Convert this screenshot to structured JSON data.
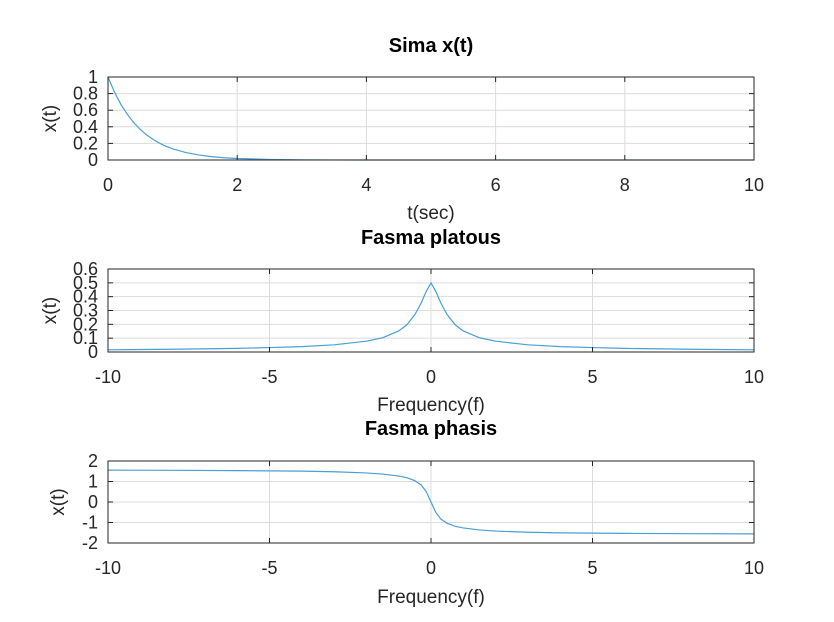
{
  "chart_data": [
    {
      "type": "line",
      "title": "Sima x(t)",
      "xlabel": "t(sec)",
      "ylabel": "x(t)",
      "xlim": [
        0,
        10
      ],
      "ylim": [
        0,
        1
      ],
      "xticks": [
        0,
        2,
        4,
        6,
        8,
        10
      ],
      "xtick_labels": [
        "0",
        "2",
        "4",
        "6",
        "8",
        "10"
      ],
      "yticks": [
        0,
        0.2,
        0.4,
        0.6,
        0.8,
        1
      ],
      "ytick_labels": [
        "0",
        "0.2",
        "0.4",
        "0.6",
        "0.8",
        "1"
      ],
      "grid": true,
      "series": [
        {
          "color": "#4a9fd5",
          "x": [
            0,
            0.1,
            0.2,
            0.3,
            0.4,
            0.5,
            0.6,
            0.7,
            0.8,
            0.9,
            1.0,
            1.2,
            1.4,
            1.6,
            1.8,
            2.0,
            2.5,
            3.0,
            3.5,
            4.0,
            5.0,
            6.0,
            7.0,
            8.0,
            9.0,
            10.0
          ],
          "y": [
            1.0,
            0.819,
            0.67,
            0.549,
            0.449,
            0.368,
            0.301,
            0.247,
            0.202,
            0.165,
            0.135,
            0.091,
            0.061,
            0.041,
            0.027,
            0.018,
            0.007,
            0.002,
            0.001,
            0.0003,
            0.0,
            0.0,
            0.0,
            0.0,
            0.0,
            0.0
          ]
        }
      ]
    },
    {
      "type": "line",
      "title": "Fasma platous",
      "xlabel": "Frequency(f)",
      "ylabel": "x(t)",
      "xlim": [
        -10,
        10
      ],
      "ylim": [
        0,
        0.6
      ],
      "xticks": [
        -10,
        -5,
        0,
        5,
        10
      ],
      "xtick_labels": [
        "-10",
        "-5",
        "0",
        "5",
        "10"
      ],
      "yticks": [
        0,
        0.1,
        0.2,
        0.3,
        0.4,
        0.5,
        0.6
      ],
      "ytick_labels": [
        "0",
        "0.1",
        "0.2",
        "0.3",
        "0.4",
        "0.5",
        "0.6"
      ],
      "grid": true,
      "series": [
        {
          "color": "#4a9fd5",
          "x": [
            -10,
            -8,
            -6,
            -5,
            -4,
            -3,
            -2,
            -1.5,
            -1,
            -0.75,
            -0.5,
            -0.3,
            -0.15,
            0,
            0.15,
            0.3,
            0.5,
            0.75,
            1,
            1.5,
            2,
            3,
            4,
            5,
            6,
            8,
            10
          ],
          "y": [
            0.016,
            0.02,
            0.026,
            0.032,
            0.039,
            0.052,
            0.078,
            0.103,
            0.152,
            0.196,
            0.27,
            0.356,
            0.437,
            0.5,
            0.437,
            0.356,
            0.27,
            0.196,
            0.152,
            0.103,
            0.078,
            0.052,
            0.039,
            0.032,
            0.026,
            0.02,
            0.016
          ]
        }
      ]
    },
    {
      "type": "line",
      "title": "Fasma phasis",
      "xlabel": "Frequency(f)",
      "ylabel": "x(t)",
      "xlim": [
        -10,
        10
      ],
      "ylim": [
        -2,
        2
      ],
      "xticks": [
        -10,
        -5,
        0,
        5,
        10
      ],
      "xtick_labels": [
        "-10",
        "-5",
        "0",
        "5",
        "10"
      ],
      "yticks": [
        -2,
        -1,
        0,
        1,
        2
      ],
      "ytick_labels": [
        "-2",
        "-1",
        "0",
        "1",
        "2"
      ],
      "grid": true,
      "series": [
        {
          "color": "#4a9fd5",
          "x": [
            -10,
            -8,
            -6,
            -5,
            -4,
            -3,
            -2,
            -1.5,
            -1,
            -0.75,
            -0.5,
            -0.3,
            -0.15,
            0,
            0.15,
            0.3,
            0.5,
            0.75,
            1,
            1.5,
            2,
            3,
            4,
            5,
            6,
            8,
            10
          ],
          "y": [
            1.555,
            1.546,
            1.531,
            1.52,
            1.505,
            1.475,
            1.418,
            1.362,
            1.266,
            1.187,
            1.039,
            0.824,
            0.511,
            0.0,
            -0.511,
            -0.824,
            -1.039,
            -1.187,
            -1.266,
            -1.362,
            -1.418,
            -1.475,
            -1.505,
            -1.52,
            -1.531,
            -1.546,
            -1.555
          ]
        }
      ]
    }
  ]
}
